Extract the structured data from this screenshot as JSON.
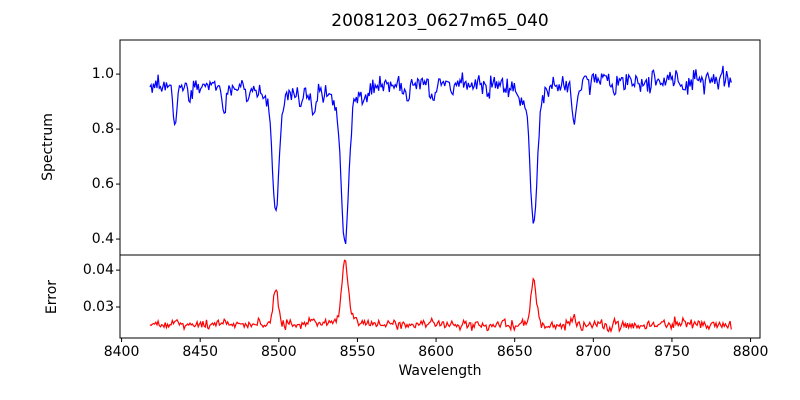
{
  "title": "20081203_0627m65_040",
  "colors": {
    "spectrum_line": "#0000ff",
    "error_line": "#ff0000",
    "axis": "#000000",
    "background": "#ffffff"
  },
  "x_axis": {
    "label": "Wavelength",
    "xlim": [
      8399,
      8806
    ],
    "ticks": [
      8400,
      8450,
      8500,
      8550,
      8600,
      8650,
      8700,
      8750,
      8800
    ],
    "tick_labels": [
      "8400",
      "8450",
      "8500",
      "8550",
      "8600",
      "8650",
      "8700",
      "8750",
      "8800"
    ]
  },
  "chart_data": [
    {
      "type": "line",
      "panel": "spectrum",
      "ylabel": "Spectrum",
      "line_color": "#0000ff",
      "ylim": [
        0.342,
        1.124
      ],
      "yticks": [
        1.0,
        0.8,
        0.6,
        0.4
      ],
      "ytick_labels": [
        "1.0",
        "0.8",
        "0.6",
        "0.4"
      ],
      "grid": false,
      "legend": false,
      "key_values": {
        "continuum_level": 0.97,
        "ca_triplet_line_centers": [
          8498,
          8542,
          8662
        ],
        "ca_triplet_line_minima": [
          0.48,
          0.36,
          0.42
        ],
        "data_x_start": 8418,
        "data_x_end": 8788
      },
      "series": {
        "x_start": 8418,
        "x_end": 8788,
        "step": 0.75,
        "seed": 7,
        "continuum": {
          "left": 0.957,
          "right": 0.982
        },
        "noise_sigma": {
          "left": 0.014,
          "right": 0.021
        },
        "absorption_lines": [
          {
            "c": 8434,
            "gd": 0.14,
            "gs": 1.3
          },
          {
            "c": 8443,
            "gd": 0.05,
            "gs": 1.0
          },
          {
            "c": 8465,
            "gd": 0.1,
            "gs": 1.3
          },
          {
            "c": 8480,
            "gd": 0.05,
            "gs": 1.1
          },
          {
            "c": 8498,
            "gd": 0.4,
            "gs": 2.0,
            "ld": 0.08,
            "lw": 7
          },
          {
            "c": 8514,
            "gd": 0.06,
            "gs": 1.2
          },
          {
            "c": 8522,
            "gd": 0.1,
            "gs": 1.4
          },
          {
            "c": 8542,
            "gd": 0.5,
            "gs": 2.3,
            "ld": 0.1,
            "lw": 9
          },
          {
            "c": 8582,
            "gd": 0.05,
            "gs": 1.2
          },
          {
            "c": 8598,
            "gd": 0.06,
            "gs": 1.3
          },
          {
            "c": 8611,
            "gd": 0.04,
            "gs": 1.0
          },
          {
            "c": 8662,
            "gd": 0.45,
            "gs": 2.1,
            "ld": 0.09,
            "lw": 8
          },
          {
            "c": 8688,
            "gd": 0.13,
            "gs": 1.5
          },
          {
            "c": 8713,
            "gd": 0.05,
            "gs": 1.2
          },
          {
            "c": 8736,
            "gd": 0.04,
            "gs": 1.1
          },
          {
            "c": 8757,
            "gd": 0.05,
            "gs": 1.1
          }
        ]
      }
    },
    {
      "type": "line",
      "panel": "error",
      "ylabel": "Error",
      "line_color": "#ff0000",
      "ylim": [
        0.0216,
        0.0441
      ],
      "yticks": [
        0.04,
        0.03
      ],
      "ytick_labels": [
        "0.04",
        "0.03"
      ],
      "grid": false,
      "legend": false,
      "key_values": {
        "baseline_level": 0.0252,
        "peak_centers": [
          8498,
          8542,
          8662
        ],
        "peak_heights": [
          0.0355,
          0.042,
          0.0375
        ]
      },
      "series": {
        "x_start": 8418,
        "x_end": 8788,
        "step": 0.75,
        "seed": 13,
        "baseline": 0.0252,
        "noise_sigma": {
          "left": 0.00045,
          "right": 0.00085
        },
        "peaks": [
          {
            "c": 8434,
            "h": 0.0012,
            "s": 2.0
          },
          {
            "c": 8465,
            "h": 0.0008,
            "s": 1.8
          },
          {
            "c": 8498,
            "h": 0.01,
            "s": 1.6
          },
          {
            "c": 8522,
            "h": 0.0012,
            "s": 1.8
          },
          {
            "c": 8542,
            "h": 0.016,
            "s": 2.0,
            "ld": 0.0015,
            "lw": 8
          },
          {
            "c": 8598,
            "h": 0.0008,
            "s": 1.5
          },
          {
            "c": 8662,
            "h": 0.0122,
            "s": 1.8
          },
          {
            "c": 8688,
            "h": 0.0028,
            "s": 1.5
          },
          {
            "c": 8757,
            "h": 0.0009,
            "s": 1.3
          }
        ]
      }
    }
  ]
}
